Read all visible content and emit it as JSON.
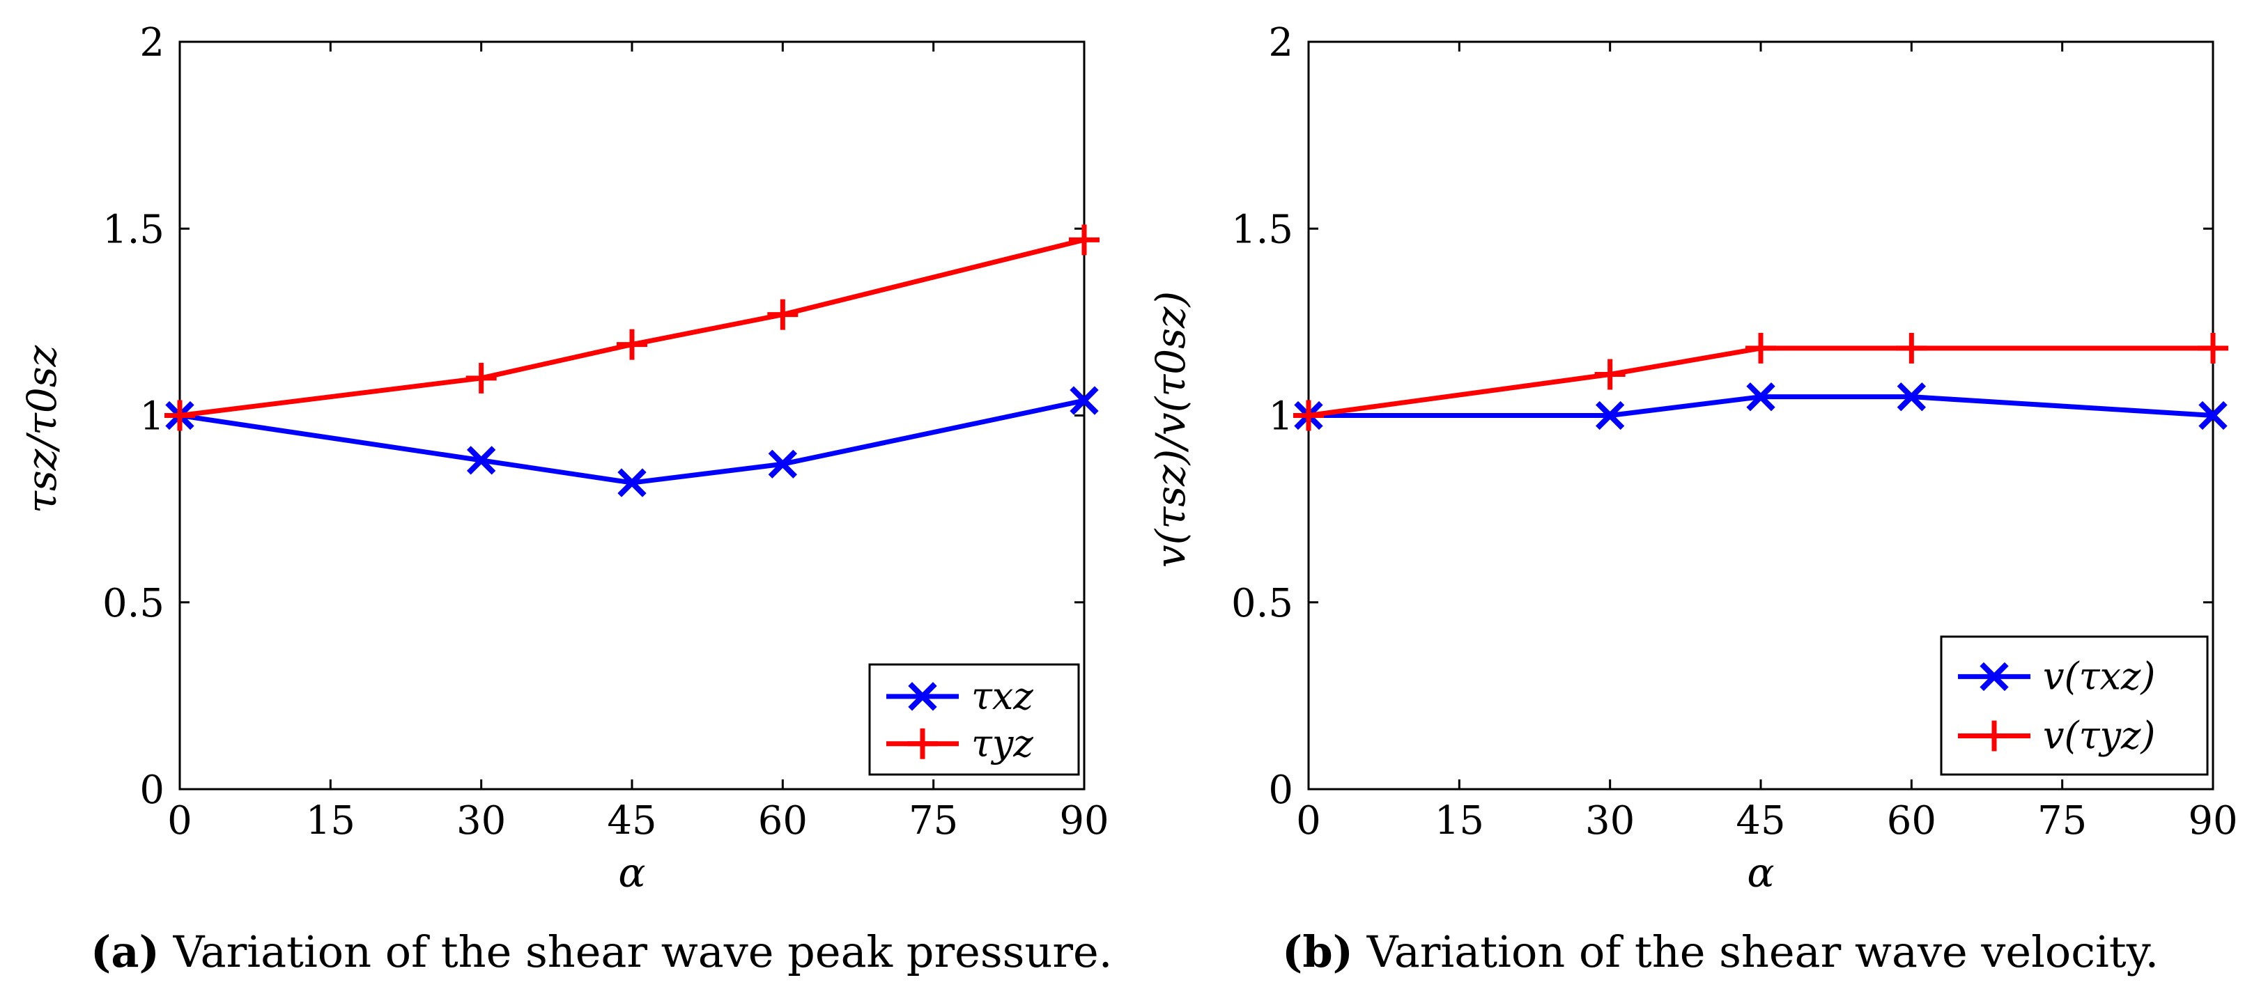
{
  "colors": {
    "series_blue": "#0000ff",
    "series_red": "#ff0000",
    "axis": "#000000"
  },
  "chart_data": [
    {
      "type": "line",
      "id": "a",
      "xlabel": "α",
      "ylabel": "τsz/τ0sz",
      "xlim": [
        0,
        90
      ],
      "ylim": [
        0,
        2
      ],
      "xticks": [
        0,
        15,
        30,
        45,
        60,
        75,
        90
      ],
      "yticks": [
        0,
        0.5,
        1,
        1.5,
        2
      ],
      "xtick_labels": [
        "0",
        "15",
        "30",
        "45",
        "60",
        "75",
        "90"
      ],
      "ytick_labels": [
        "0",
        "0.5",
        "1",
        "1.5",
        "2"
      ],
      "legend_position": "bottom-right",
      "series": [
        {
          "name": "τxz",
          "color": "#0000ff",
          "marker": "x",
          "x": [
            0,
            30,
            45,
            60,
            90
          ],
          "y": [
            1.0,
            0.88,
            0.82,
            0.87,
            1.04
          ]
        },
        {
          "name": "τyz",
          "color": "#ff0000",
          "marker": "+",
          "x": [
            0,
            30,
            45,
            60,
            90
          ],
          "y": [
            1.0,
            1.1,
            1.19,
            1.27,
            1.47
          ]
        }
      ],
      "caption_label": "(a)",
      "caption_text": "Variation of the shear wave peak pressure."
    },
    {
      "type": "line",
      "id": "b",
      "xlabel": "α",
      "ylabel": "v(τsz)/v(τ0sz)",
      "xlim": [
        0,
        90
      ],
      "ylim": [
        0,
        2
      ],
      "xticks": [
        0,
        15,
        30,
        45,
        60,
        75,
        90
      ],
      "yticks": [
        0,
        0.5,
        1,
        1.5,
        2
      ],
      "xtick_labels": [
        "0",
        "15",
        "30",
        "45",
        "60",
        "75",
        "90"
      ],
      "ytick_labels": [
        "0",
        "0.5",
        "1",
        "1.5",
        "2"
      ],
      "legend_position": "bottom-right",
      "series": [
        {
          "name": "v(τxz)",
          "color": "#0000ff",
          "marker": "x",
          "x": [
            0,
            30,
            45,
            60,
            90
          ],
          "y": [
            1.0,
            1.0,
            1.05,
            1.05,
            1.0
          ]
        },
        {
          "name": "v(τyz)",
          "color": "#ff0000",
          "marker": "+",
          "x": [
            0,
            30,
            45,
            60,
            90
          ],
          "y": [
            1.0,
            1.11,
            1.18,
            1.18,
            1.18
          ]
        }
      ],
      "caption_label": "(b)",
      "caption_text": "Variation of the shear wave velocity."
    }
  ]
}
